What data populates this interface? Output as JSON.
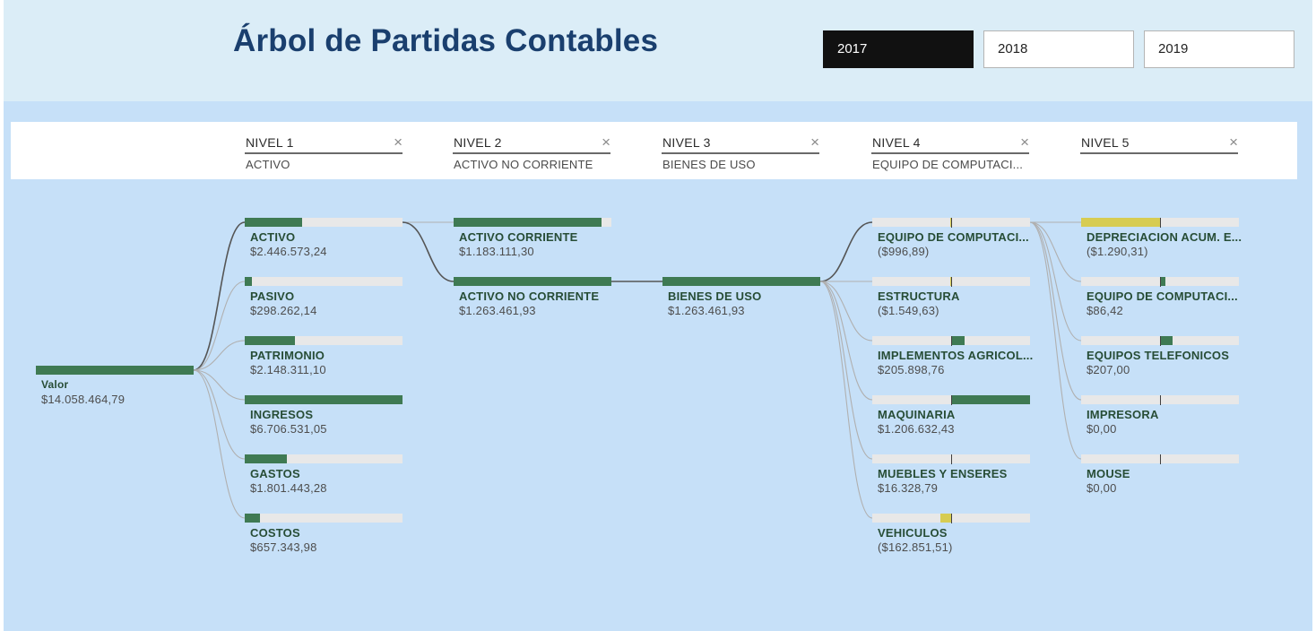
{
  "title": "Árbol de Partidas Contables",
  "years": [
    {
      "label": "2017",
      "selected": true
    },
    {
      "label": "2018",
      "selected": false
    },
    {
      "label": "2019",
      "selected": false
    }
  ],
  "levels": [
    {
      "name": "NIVEL 1",
      "value": "ACTIVO"
    },
    {
      "name": "NIVEL 2",
      "value": "ACTIVO NO CORRIENTE"
    },
    {
      "name": "NIVEL 3",
      "value": "BIENES DE USO"
    },
    {
      "name": "NIVEL 4",
      "value": "EQUIPO DE COMPUTACI..."
    },
    {
      "name": "NIVEL 5",
      "value": ""
    }
  ],
  "tree": {
    "root": {
      "label": "Valor",
      "value": "$14.058.464,79",
      "fill": 1.0
    },
    "columns": [
      [
        {
          "label": "ACTIVO",
          "value": "$2.446.573,24",
          "fill": 0.365
        },
        {
          "label": "PASIVO",
          "value": "$298.262,14",
          "fill": 0.045
        },
        {
          "label": "PATRIMONIO",
          "value": "$2.148.311,10",
          "fill": 0.32
        },
        {
          "label": "INGRESOS",
          "value": "$6.706.531,05",
          "fill": 1.0
        },
        {
          "label": "GASTOS",
          "value": "$1.801.443,28",
          "fill": 0.268
        },
        {
          "label": "COSTOS",
          "value": "$657.343,98",
          "fill": 0.098
        }
      ],
      [
        {
          "label": "ACTIVO CORRIENTE",
          "value": "$1.183.111,30",
          "fill": 0.937
        },
        {
          "label": "ACTIVO NO CORRIENTE",
          "value": "$1.263.461,93",
          "fill": 1.0
        }
      ],
      [
        {
          "label": "BIENES DE USO",
          "value": "$1.263.461,93",
          "fill": 1.0
        }
      ],
      [
        {
          "label": "EQUIPO DE COMPUTACI...",
          "value": "($996,89)",
          "fill": -0.008
        },
        {
          "label": "ESTRUCTURA",
          "value": "($1.549,63)",
          "fill": -0.013
        },
        {
          "label": "IMPLEMENTOS AGRICOL...",
          "value": "$205.898,76",
          "fill": 0.171
        },
        {
          "label": "MAQUINARIA",
          "value": "$1.206.632,43",
          "fill": 1.0
        },
        {
          "label": "MUEBLES Y ENSERES",
          "value": "$16.328,79",
          "fill": 0.014
        },
        {
          "label": "VEHICULOS",
          "value": "($162.851,51)",
          "fill": -0.135
        }
      ],
      [
        {
          "label": "DEPRECIACION ACUM. E...",
          "value": "($1.290,31)",
          "fill": -1.0
        },
        {
          "label": "EQUIPO DE COMPUTACI...",
          "value": "$86,42",
          "fill": 0.067
        },
        {
          "label": "EQUIPOS TELEFONICOS",
          "value": "$207,00",
          "fill": 0.16
        },
        {
          "label": "IMPRESORA",
          "value": "$0,00",
          "fill": 0
        },
        {
          "label": "MOUSE",
          "value": "$0,00",
          "fill": 0
        }
      ]
    ],
    "expanded": [
      0,
      1,
      0,
      0
    ]
  },
  "colors": {
    "positive_bar": "#3f7a53",
    "negative_bar": "#d7cc52",
    "bar_track": "#e8e8e8",
    "title": "#1a3f6e",
    "background": "#c6e0f8"
  }
}
